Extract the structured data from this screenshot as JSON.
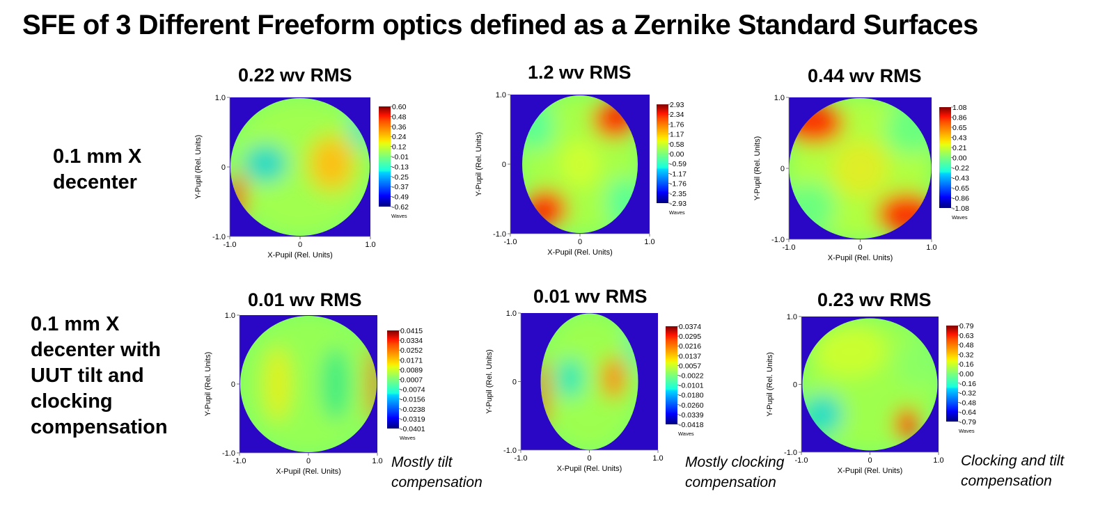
{
  "title": "SFE of 3 Different Freeform optics defined as a Zernike Standard Surfaces",
  "rows": [
    {
      "label": "0.1 mm X\ndecenter"
    },
    {
      "label": "0.1 mm X\ndecenter with\nUUT tilt and\nclocking\ncompensation"
    }
  ],
  "notes": [
    "Mostly tilt\ncompensation",
    "Mostly clocking\ncompensation",
    "Clocking and tilt\ncompensation"
  ],
  "axes": {
    "xlabel": "X-Pupil (Rel. Units)",
    "ylabel": "Y-Pupil (Rel. Units)",
    "xticks": [
      "-1.0",
      "0",
      "1.0"
    ],
    "yticks": [
      "1.0",
      "0",
      "-1.0"
    ],
    "units": "Waves"
  },
  "chart_data": [
    {
      "type": "heatmap",
      "title": "0.22 wv RMS",
      "rms_waves": 0.22,
      "pattern": "tilt",
      "xlim": [
        -1,
        1
      ],
      "ylim": [
        -1,
        1
      ],
      "colorbar": [
        "0.60",
        "0.48",
        "0.36",
        "0.24",
        "0.12",
        "-0.01",
        "-0.13",
        "-0.25",
        "-0.37",
        "-0.49",
        "-0.62"
      ],
      "colorbar_range": [
        -0.62,
        0.6
      ]
    },
    {
      "type": "heatmap",
      "title": "1.2 wv RMS",
      "rms_waves": 1.2,
      "pattern": "clocking",
      "xlim": [
        -1,
        1
      ],
      "ylim": [
        -1,
        1
      ],
      "colorbar": [
        "2.93",
        "2.34",
        "1.76",
        "1.17",
        "0.58",
        "0.00",
        "-0.59",
        "-1.17",
        "-1.76",
        "-2.35",
        "-2.93"
      ],
      "colorbar_range": [
        -2.93,
        2.93
      ]
    },
    {
      "type": "heatmap",
      "title": "0.44 wv RMS",
      "rms_waves": 0.44,
      "pattern": "clocking-tilt",
      "xlim": [
        -1,
        1
      ],
      "ylim": [
        -1,
        1
      ],
      "colorbar": [
        "1.08",
        "0.86",
        "0.65",
        "0.43",
        "0.21",
        "0.00",
        "-0.22",
        "-0.43",
        "-0.65",
        "-0.86",
        "-1.08"
      ],
      "colorbar_range": [
        -1.08,
        1.08
      ]
    },
    {
      "type": "heatmap",
      "title": "0.01 wv RMS",
      "rms_waves": 0.01,
      "pattern": "residual-tilt",
      "xlim": [
        -1,
        1
      ],
      "ylim": [
        -1,
        1
      ],
      "colorbar": [
        "0.0415",
        "0.0334",
        "0.0252",
        "0.0171",
        "0.0089",
        "0.0007",
        "-0.0074",
        "-0.0156",
        "-0.0238",
        "-0.0319",
        "-0.0401"
      ],
      "colorbar_range": [
        -0.0401,
        0.0415
      ]
    },
    {
      "type": "heatmap",
      "title": "0.01 wv RMS",
      "rms_waves": 0.01,
      "pattern": "residual-clocking",
      "xlim": [
        -1,
        1
      ],
      "ylim": [
        -1,
        1
      ],
      "colorbar": [
        "0.0374",
        "0.0295",
        "0.0216",
        "0.0137",
        "0.0057",
        "-0.0022",
        "-0.0101",
        "-0.0180",
        "-0.0260",
        "-0.0339",
        "-0.0418"
      ],
      "colorbar_range": [
        -0.0418,
        0.0374
      ]
    },
    {
      "type": "heatmap",
      "title": "0.23 wv RMS",
      "rms_waves": 0.23,
      "pattern": "residual-both",
      "xlim": [
        -1,
        1
      ],
      "ylim": [
        -1,
        1
      ],
      "colorbar": [
        "0.79",
        "0.63",
        "0.48",
        "0.32",
        "0.16",
        "0.00",
        "-0.16",
        "-0.32",
        "-0.48",
        "-0.64",
        "-0.79"
      ],
      "colorbar_range": [
        -0.79,
        0.79
      ]
    }
  ]
}
